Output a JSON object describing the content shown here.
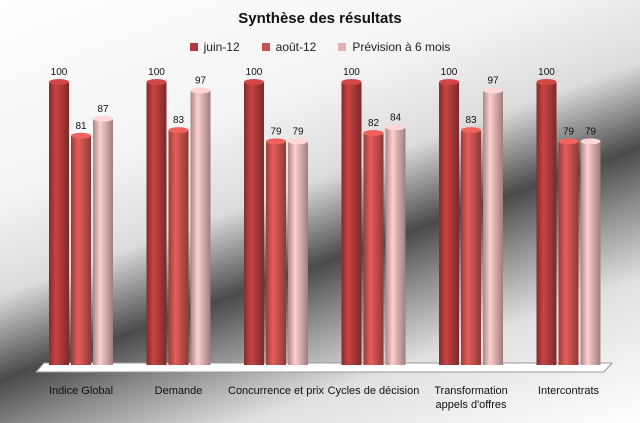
{
  "chart_data": {
    "type": "bar",
    "title": "Synthèse des résultats",
    "categories": [
      "Indice Global",
      "Demande",
      "Concurrence et prix",
      "Cycles de décision",
      "Transformation appels d'offres",
      "Intercontrats"
    ],
    "series": [
      {
        "name": "juin-12",
        "color": "#b03a3a",
        "values": [
          100,
          100,
          100,
          100,
          100,
          100
        ]
      },
      {
        "name": "août-12",
        "color": "#c9524e",
        "values": [
          81,
          83,
          79,
          82,
          83,
          79
        ]
      },
      {
        "name": "Prévision à 6 mois",
        "color": "#e3b3b3",
        "values": [
          87,
          97,
          79,
          84,
          97,
          79
        ]
      }
    ],
    "ylim": [
      0,
      100
    ],
    "legend_position": "top",
    "grid": false
  }
}
